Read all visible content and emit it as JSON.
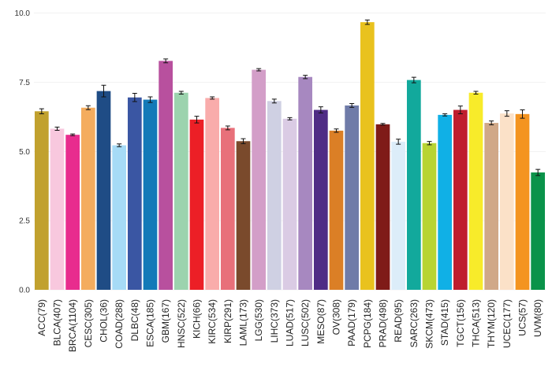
{
  "chart_data": {
    "type": "bar",
    "title": "",
    "xlabel": "",
    "ylabel": "",
    "ylim": [
      0,
      10.3
    ],
    "yticks": [
      "0.0",
      "2.5",
      "5.0",
      "7.5",
      "10.0"
    ],
    "ytick_values": [
      0,
      2.5,
      5,
      7.5,
      10
    ],
    "grid": "horizontal",
    "legend": "none",
    "categories": [
      "ACC(79)",
      "BLCA(407)",
      "BRCA(1104)",
      "CESC(305)",
      "CHOL(36)",
      "COAD(288)",
      "DLBC(48)",
      "ESCA(185)",
      "GBM(167)",
      "HNSC(522)",
      "KICH(66)",
      "KIRC(534)",
      "KIRP(291)",
      "LAML(173)",
      "LGG(530)",
      "LIHC(373)",
      "LUAD(517)",
      "LUSC(502)",
      "MESO(87)",
      "OV(308)",
      "PAAD(179)",
      "PCPG(184)",
      "PRAD(498)",
      "READ(95)",
      "SARC(263)",
      "SKCM(473)",
      "STAD(415)",
      "TGCT(156)",
      "THCA(513)",
      "THYM(120)",
      "UCEC(177)",
      "UCS(57)",
      "UVM(80)"
    ],
    "values": [
      6.45,
      5.82,
      5.6,
      6.58,
      7.18,
      5.22,
      6.95,
      6.87,
      8.27,
      7.12,
      6.15,
      6.93,
      5.85,
      5.37,
      7.95,
      6.82,
      6.18,
      7.69,
      6.5,
      5.75,
      6.66,
      9.67,
      5.98,
      5.35,
      7.58,
      5.3,
      6.32,
      6.5,
      7.12,
      6.03,
      6.37,
      6.35,
      4.24
    ],
    "errors": [
      0.09,
      0.06,
      0.03,
      0.07,
      0.21,
      0.05,
      0.15,
      0.1,
      0.07,
      0.05,
      0.12,
      0.04,
      0.07,
      0.09,
      0.04,
      0.07,
      0.04,
      0.06,
      0.11,
      0.06,
      0.07,
      0.08,
      0.03,
      0.09,
      0.1,
      0.06,
      0.04,
      0.14,
      0.05,
      0.07,
      0.1,
      0.15,
      0.11
    ],
    "colors": [
      "#C1A12E",
      "#F8C8DE",
      "#E82C8E",
      "#F4AC5E",
      "#1F4C85",
      "#A6DBF6",
      "#3A56A3",
      "#137AB8",
      "#B8509E",
      "#9CD3AE",
      "#EC1F26",
      "#F9ACAB",
      "#E8707A",
      "#7A4A2C",
      "#D39EC8",
      "#CFD0E3",
      "#DACBE4",
      "#A788C0",
      "#4F2C85",
      "#DB7F26",
      "#6F7BA8",
      "#E9C21E",
      "#7F1B18",
      "#DCEDF9",
      "#12A99C",
      "#B8D433",
      "#10B0E6",
      "#BF1E2E",
      "#F8EB2A",
      "#D0A888",
      "#FBE1C8",
      "#F49420",
      "#0A934A"
    ]
  }
}
